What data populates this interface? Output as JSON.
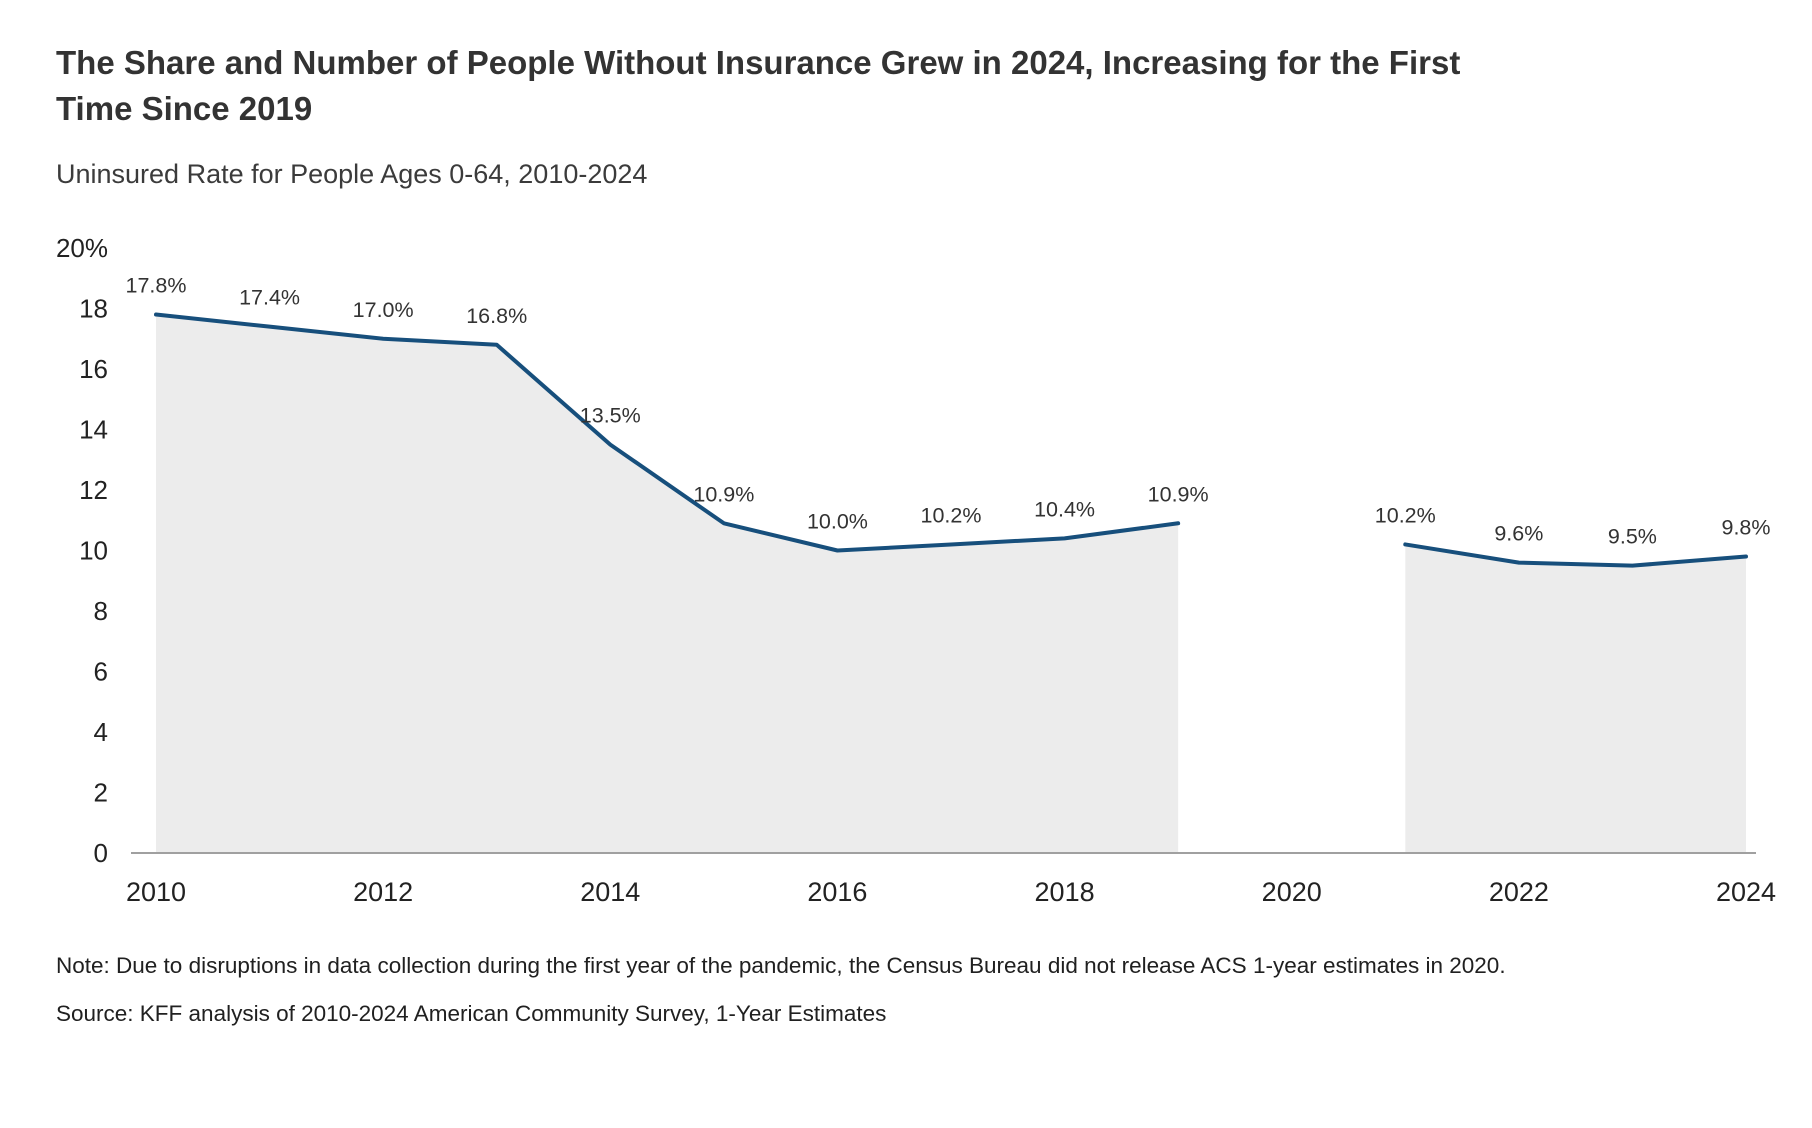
{
  "header": {
    "title": "The Share and Number of People Without Insurance Grew in 2024, Increasing for the First Time Since 2019",
    "subtitle": "Uninsured Rate for People Ages 0-64, 2010-2024"
  },
  "chart_data": {
    "type": "area",
    "title": "Uninsured Rate for People Ages 0-64, 2010-2024",
    "xlabel": "",
    "ylabel": "",
    "x": [
      2010,
      2011,
      2012,
      2013,
      2014,
      2015,
      2016,
      2017,
      2018,
      2019,
      2020,
      2021,
      2022,
      2023,
      2024
    ],
    "series": [
      {
        "name": "Uninsured rate (ages 0-64)",
        "values": [
          17.8,
          17.4,
          17.0,
          16.8,
          13.5,
          10.9,
          10.0,
          10.2,
          10.4,
          10.9,
          null,
          10.2,
          9.6,
          9.5,
          9.8
        ]
      }
    ],
    "point_labels": [
      "17.8%",
      "17.4%",
      "17.0%",
      "16.8%",
      "13.5%",
      "10.9%",
      "10.0%",
      "10.2%",
      "10.4%",
      "10.9%",
      null,
      "10.2%",
      "9.6%",
      "9.5%",
      "9.8%"
    ],
    "ylim": [
      0,
      20
    ],
    "ytick_values": [
      0,
      2,
      4,
      6,
      8,
      10,
      12,
      14,
      16,
      18,
      20
    ],
    "ytick_labels": [
      "0",
      "2",
      "4",
      "6",
      "8",
      "10",
      "12",
      "14",
      "16",
      "18",
      "20%"
    ],
    "xtick_labels": [
      "2010",
      "2012",
      "2014",
      "2016",
      "2018",
      "2020",
      "2022",
      "2024"
    ],
    "grid": false,
    "legend": "none",
    "missing_data_year": 2020,
    "line_color": "#174f7c",
    "area_color": "#ececec",
    "axis_line_color": "#a0a0a0",
    "tick_text_color": "#222222",
    "label_text_color": "#333333"
  },
  "footer": {
    "note": "Note: Due to disruptions in data collection during the first year of the pandemic, the Census Bureau did not release ACS 1-year estimates in 2020.",
    "source": "Source: KFF analysis of 2010-2024 American Community Survey, 1-Year Estimates"
  }
}
